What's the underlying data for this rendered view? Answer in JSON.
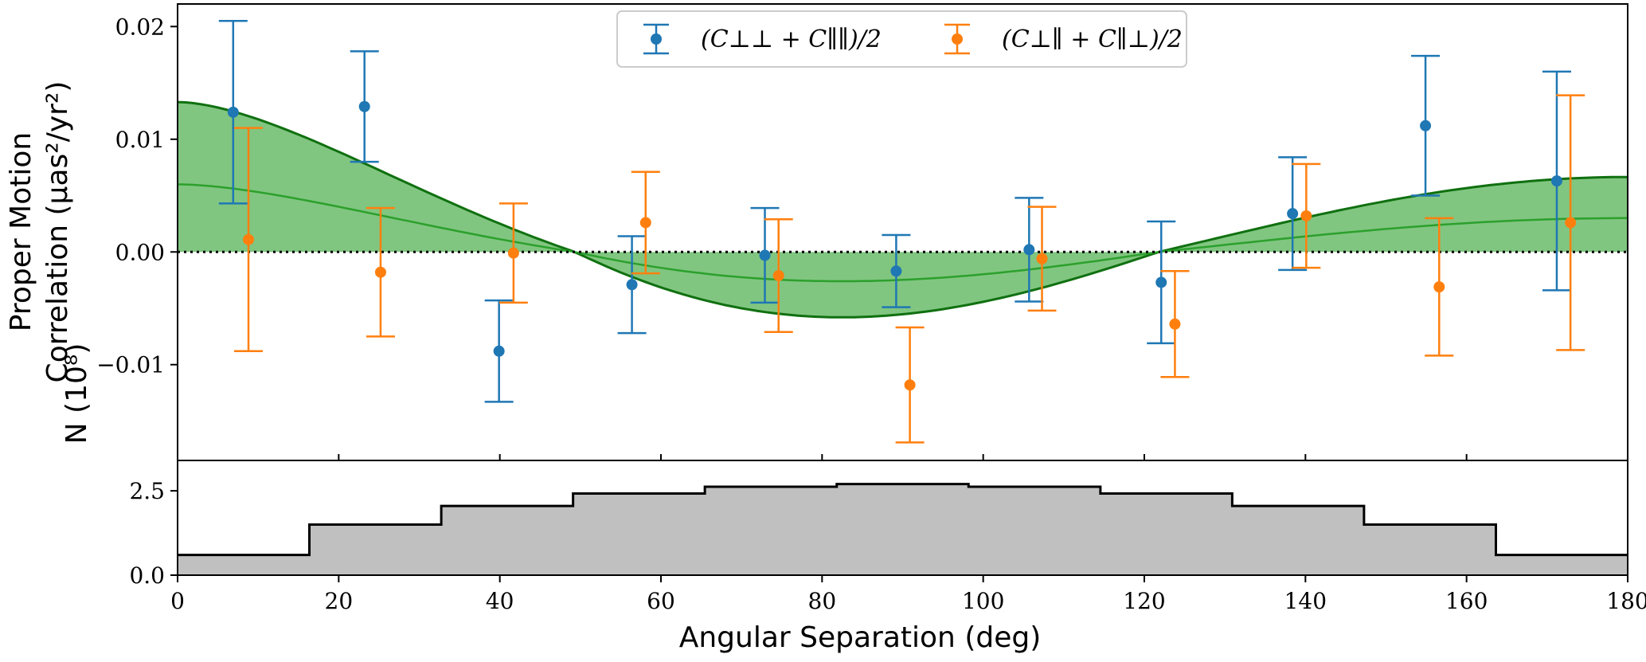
{
  "chart_data": [
    {
      "type": "scatter",
      "panel": "top",
      "ylabel_line1": "Proper Motion",
      "ylabel_line2": "Correlation (μas²/yr²)",
      "xlim": [
        0,
        180
      ],
      "ylim": [
        -0.0185,
        0.022
      ],
      "yticks": [
        -0.01,
        0.0,
        0.01,
        0.02
      ],
      "ytick_labels": [
        "−0.01",
        "0.00",
        "0.01",
        "0.02"
      ],
      "zero_line": "dotted",
      "legend_position": "top-center",
      "series": [
        {
          "name": "(C⊥⊥ + C∥∥)/2",
          "color": "#1f77b4",
          "x": [
            6.9,
            23.2,
            39.9,
            56.4,
            72.9,
            89.2,
            105.7,
            122.1,
            138.4,
            154.9,
            171.2
          ],
          "y": [
            0.0124,
            0.0129,
            -0.0088,
            -0.0029,
            -0.0003,
            -0.0017,
            0.0002,
            -0.0027,
            0.0034,
            0.0112,
            0.0063
          ],
          "err": [
            0.0081,
            0.0049,
            0.0045,
            0.0043,
            0.0042,
            0.0032,
            0.0046,
            0.0054,
            0.005,
            0.0062,
            0.0097
          ]
        },
        {
          "name": "(C⊥∥ + C∥⊥)/2",
          "color": "#ff7f0e",
          "x": [
            8.8,
            25.2,
            41.7,
            58.1,
            74.6,
            90.9,
            107.3,
            123.8,
            140.1,
            156.6,
            172.9
          ],
          "y": [
            0.0011,
            -0.0018,
            -0.0001,
            0.0026,
            -0.0021,
            -0.0118,
            -0.0006,
            -0.0064,
            0.0032,
            -0.0031,
            0.0026
          ],
          "err": [
            0.0099,
            0.0057,
            0.0044,
            0.0045,
            0.005,
            0.0051,
            0.0046,
            0.0047,
            0.0046,
            0.0061,
            0.0113
          ]
        }
      ],
      "model_band": {
        "color": "#2ca02c",
        "zero_crossing_deg": 57.5,
        "upper_at_0": 0.0133,
        "median_at_0": 0.006,
        "min_upper": -0.0058,
        "min_median": -0.0026
      }
    },
    {
      "type": "area",
      "panel": "bottom",
      "ylabel": "N (10⁸)",
      "xlabel": "Angular Separation (deg)",
      "xlim": [
        0,
        180
      ],
      "ylim": [
        0,
        3.4
      ],
      "yticks": [
        0.0,
        2.5
      ],
      "ytick_labels": [
        "0.0",
        "2.5"
      ],
      "xticks": [
        0,
        20,
        40,
        60,
        80,
        100,
        120,
        140,
        160,
        180
      ],
      "xtick_labels": [
        "0",
        "20",
        "40",
        "60",
        "80",
        "100",
        "120",
        "140",
        "160",
        "180"
      ],
      "bin_edges": [
        0,
        16.36,
        32.73,
        49.09,
        65.45,
        81.82,
        98.18,
        114.55,
        130.91,
        147.27,
        163.64,
        180
      ],
      "values": [
        0.6,
        1.5,
        2.05,
        2.42,
        2.62,
        2.7,
        2.62,
        2.42,
        2.05,
        1.5,
        0.6
      ],
      "fill_color": "#c0c0c0"
    }
  ]
}
